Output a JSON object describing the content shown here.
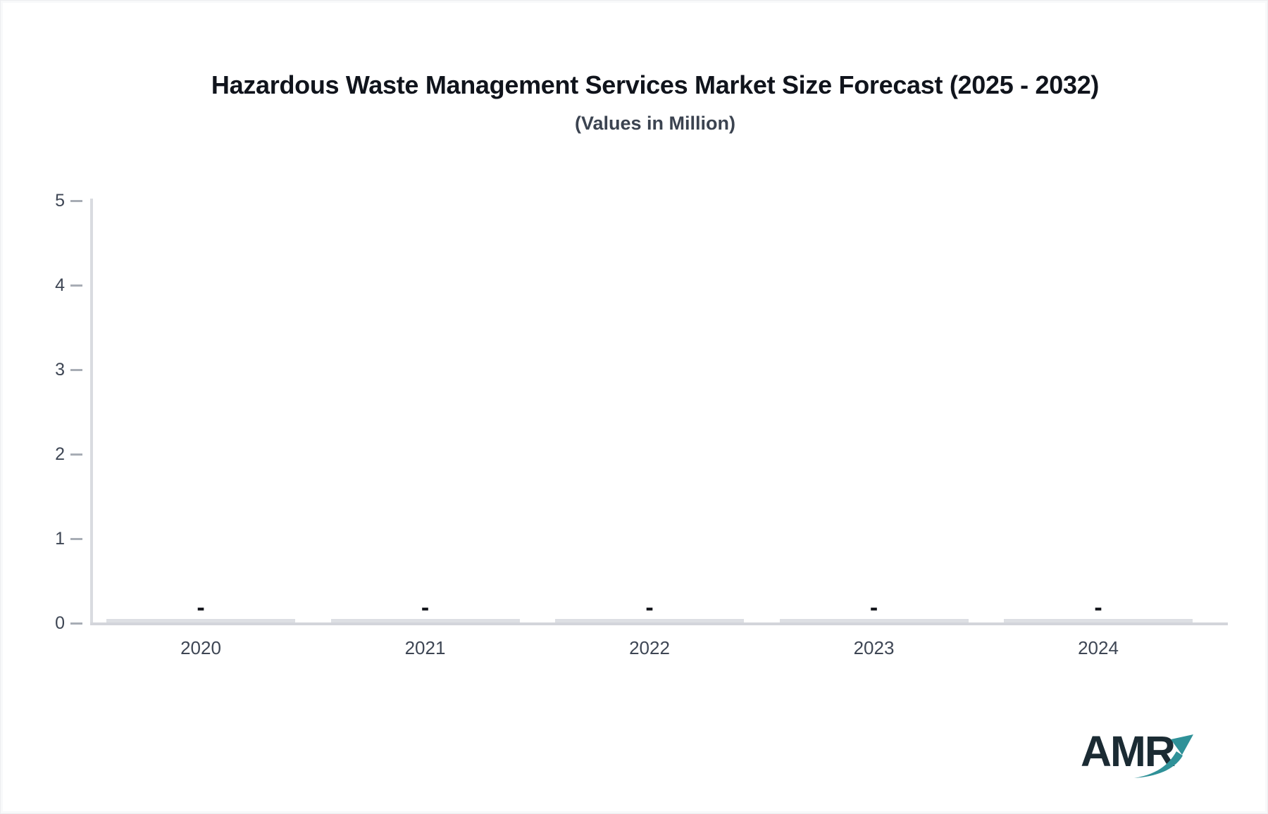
{
  "page": {
    "background": "#ffffff",
    "frame_border_color": "#ecedf0",
    "frame_inner_color": "#f8f9fa"
  },
  "chart_data": {
    "type": "bar",
    "title": "Hazardous Waste Management Services Market Size Forecast (2025 - 2032)",
    "subtitle": "(Values in Million)",
    "categories": [
      "2020",
      "2021",
      "2022",
      "2023",
      "2024"
    ],
    "values": [
      null,
      null,
      null,
      null,
      null
    ],
    "value_labels": [
      "-",
      "-",
      "-",
      "-",
      "-"
    ],
    "note": "All bars show no value: zero-height bars on the baseline with dash data labels",
    "xlabel": "",
    "ylabel": "",
    "ylim": [
      0,
      5
    ],
    "yticks": [
      0,
      1,
      2,
      3,
      4,
      5
    ],
    "grid": false,
    "legend": false,
    "colors": {
      "title": "#10141c",
      "subtitle": "#3b4350",
      "axis_label": "#3e4654",
      "tick_mark": "#a8adb5",
      "axis_line": "#d9dbe0",
      "baseline": "#d3d5db",
      "bar": "#dddfe4",
      "value_label": "#17191f"
    }
  },
  "branding": {
    "logo_text": "AMR",
    "logo_text_color": "#1b2b33",
    "logo_arrow_color": "#2f9198",
    "logo_arrow_icon": "trending-up-arrow"
  }
}
